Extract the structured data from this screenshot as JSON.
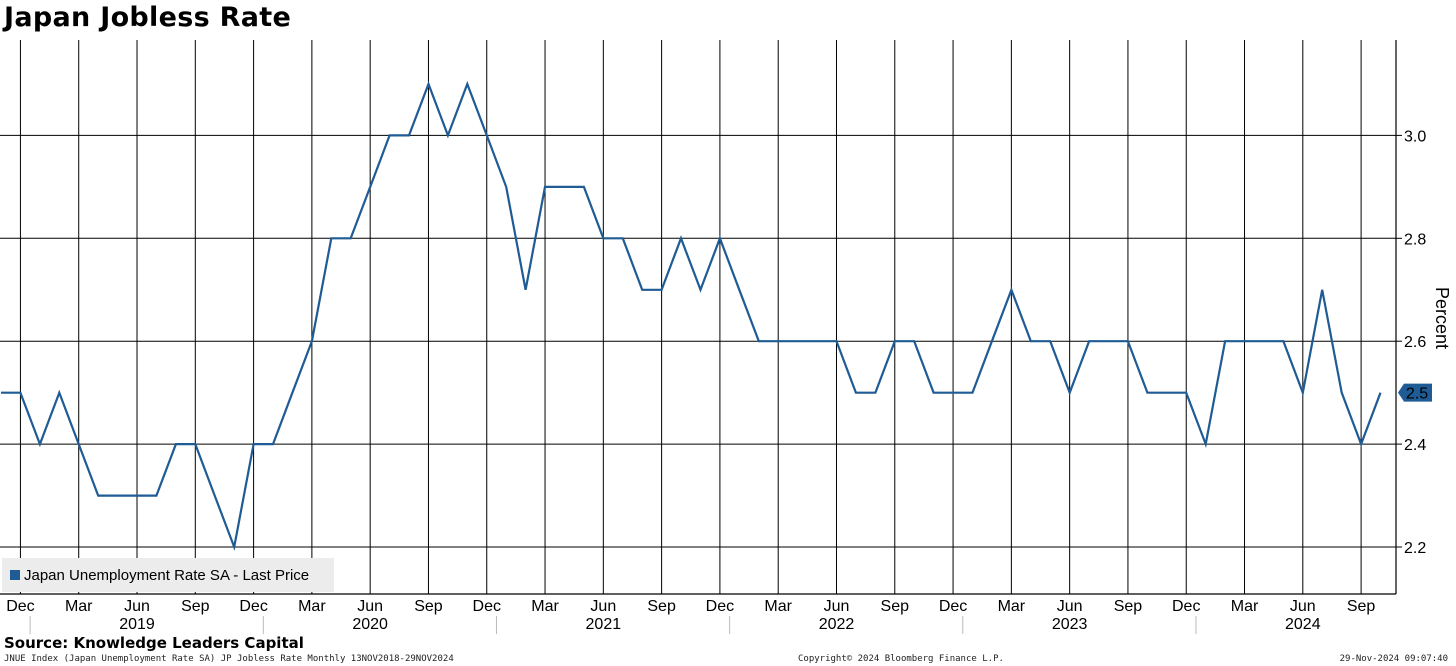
{
  "title": "Japan Jobless Rate",
  "legend": {
    "label": "Japan Unemployment Rate SA - Last Price"
  },
  "source": "Source: Knowledge Leaders Capital",
  "footer": {
    "left": "JNUE Index (Japan Unemployment Rate SA) JP Jobless Rate  Monthly 13NOV2018-29NOV2024",
    "middle": "Copyright© 2024 Bloomberg Finance L.P.",
    "right": "29-Nov-2024 09:07:40"
  },
  "colors": {
    "series": "#1f5b94",
    "grid": "#000000",
    "legend_bg": "#ececec",
    "badge": "#1f5b94"
  },
  "chart_data": {
    "type": "line",
    "title": "Japan Jobless Rate",
    "ylabel": "Percent",
    "ylim": [
      2.1,
      3.2
    ],
    "yticks": [
      2.2,
      2.4,
      2.6,
      2.8,
      3.0
    ],
    "ytick_labels": [
      "2.2",
      "2.4",
      "2.6",
      "2.8",
      "3.0"
    ],
    "last_value_label": "2.5",
    "month_ticks": [
      {
        "label": "Dec",
        "date": "2018-12"
      },
      {
        "label": "Mar",
        "date": "2019-03"
      },
      {
        "label": "Jun",
        "date": "2019-06"
      },
      {
        "label": "Sep",
        "date": "2019-09"
      },
      {
        "label": "Dec",
        "date": "2019-12"
      },
      {
        "label": "Mar",
        "date": "2020-03"
      },
      {
        "label": "Jun",
        "date": "2020-06"
      },
      {
        "label": "Sep",
        "date": "2020-09"
      },
      {
        "label": "Dec",
        "date": "2020-12"
      },
      {
        "label": "Mar",
        "date": "2021-03"
      },
      {
        "label": "Jun",
        "date": "2021-06"
      },
      {
        "label": "Sep",
        "date": "2021-09"
      },
      {
        "label": "Dec",
        "date": "2021-12"
      },
      {
        "label": "Mar",
        "date": "2022-03"
      },
      {
        "label": "Jun",
        "date": "2022-06"
      },
      {
        "label": "Sep",
        "date": "2022-09"
      },
      {
        "label": "Dec",
        "date": "2022-12"
      },
      {
        "label": "Mar",
        "date": "2023-03"
      },
      {
        "label": "Jun",
        "date": "2023-06"
      },
      {
        "label": "Sep",
        "date": "2023-09"
      },
      {
        "label": "Dec",
        "date": "2023-12"
      },
      {
        "label": "Mar",
        "date": "2024-03"
      },
      {
        "label": "Jun",
        "date": "2024-06"
      },
      {
        "label": "Sep",
        "date": "2024-09"
      }
    ],
    "year_labels": [
      {
        "label": "2019",
        "date": "2019-06"
      },
      {
        "label": "2020",
        "date": "2020-06"
      },
      {
        "label": "2021",
        "date": "2021-06"
      },
      {
        "label": "2022",
        "date": "2022-06"
      },
      {
        "label": "2023",
        "date": "2023-06"
      },
      {
        "label": "2024",
        "date": "2024-06"
      }
    ],
    "series": [
      {
        "name": "Japan Unemployment Rate SA - Last Price",
        "x": [
          "2018-11",
          "2018-12",
          "2019-01",
          "2019-02",
          "2019-03",
          "2019-04",
          "2019-05",
          "2019-06",
          "2019-07",
          "2019-08",
          "2019-09",
          "2019-10",
          "2019-11",
          "2019-12",
          "2020-01",
          "2020-02",
          "2020-03",
          "2020-04",
          "2020-05",
          "2020-06",
          "2020-07",
          "2020-08",
          "2020-09",
          "2020-10",
          "2020-11",
          "2020-12",
          "2021-01",
          "2021-02",
          "2021-03",
          "2021-04",
          "2021-05",
          "2021-06",
          "2021-07",
          "2021-08",
          "2021-09",
          "2021-10",
          "2021-11",
          "2021-12",
          "2022-01",
          "2022-02",
          "2022-03",
          "2022-04",
          "2022-05",
          "2022-06",
          "2022-07",
          "2022-08",
          "2022-09",
          "2022-10",
          "2022-11",
          "2022-12",
          "2023-01",
          "2023-02",
          "2023-03",
          "2023-04",
          "2023-05",
          "2023-06",
          "2023-07",
          "2023-08",
          "2023-09",
          "2023-10",
          "2023-11",
          "2023-12",
          "2024-01",
          "2024-02",
          "2024-03",
          "2024-04",
          "2024-05",
          "2024-06",
          "2024-07",
          "2024-08",
          "2024-09",
          "2024-10"
        ],
        "values": [
          2.5,
          2.5,
          2.4,
          2.5,
          2.4,
          2.3,
          2.3,
          2.3,
          2.3,
          2.4,
          2.4,
          2.3,
          2.2,
          2.4,
          2.4,
          2.5,
          2.6,
          2.8,
          2.8,
          2.9,
          3.0,
          3.0,
          3.1,
          3.0,
          3.1,
          3.0,
          2.9,
          2.7,
          2.9,
          2.9,
          2.9,
          2.8,
          2.8,
          2.7,
          2.7,
          2.8,
          2.7,
          2.8,
          2.7,
          2.6,
          2.6,
          2.6,
          2.6,
          2.6,
          2.5,
          2.5,
          2.6,
          2.6,
          2.5,
          2.5,
          2.5,
          2.6,
          2.7,
          2.6,
          2.6,
          2.5,
          2.6,
          2.6,
          2.6,
          2.5,
          2.5,
          2.5,
          2.4,
          2.6,
          2.6,
          2.6,
          2.6,
          2.5,
          2.7,
          2.5,
          2.4,
          2.5
        ]
      }
    ],
    "grid": true,
    "legend_position": "bottom-left",
    "yaxis_position": "right"
  }
}
